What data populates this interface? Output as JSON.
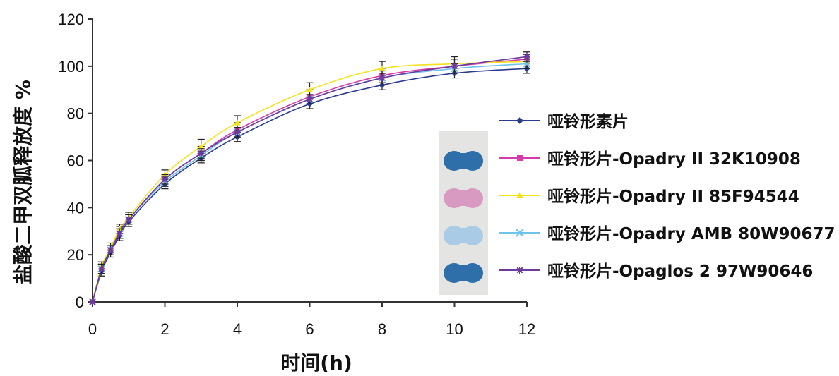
{
  "chart_data": {
    "type": "line",
    "title": "",
    "xlabel": "时间(h)",
    "ylabel": "盐酸二甲双胍释放度 %",
    "xlim": [
      0,
      12
    ],
    "ylim": [
      0,
      120
    ],
    "x_ticks": [
      0,
      2,
      4,
      6,
      8,
      10,
      12
    ],
    "y_ticks": [
      0,
      20,
      40,
      60,
      80,
      100,
      120
    ],
    "x_tick_labels": [
      "0",
      "2",
      "4",
      "6",
      "8",
      "10",
      "12"
    ],
    "y_tick_labels": [
      "0",
      "20",
      "40",
      "60",
      "80",
      "100",
      "120"
    ],
    "grid": false,
    "legend_position": "right",
    "x": [
      0,
      0.25,
      0.5,
      0.75,
      1,
      2,
      3,
      4,
      6,
      8,
      10,
      12
    ],
    "series": [
      {
        "name": "哑铃形素片",
        "color": "#2b3c8f",
        "marker": "diamond",
        "values": [
          0,
          13,
          21,
          28,
          34,
          50,
          61,
          70,
          84,
          92,
          97,
          99
        ],
        "errors": [
          0,
          2,
          2,
          2,
          2,
          2,
          2,
          2,
          2,
          2,
          2,
          2
        ]
      },
      {
        "name": "哑铃形片-Opadry II 32K10908",
        "color": "#d63aa6",
        "marker": "square",
        "values": [
          0,
          14,
          22,
          30,
          35,
          52,
          63,
          73,
          87,
          96,
          100,
          103
        ],
        "errors": [
          0,
          2,
          2,
          2,
          2,
          2,
          3,
          3,
          3,
          3,
          3,
          2
        ]
      },
      {
        "name": "哑铃形片-Opadry II 85F94544",
        "color": "#f2e31b",
        "marker": "triangle",
        "values": [
          0,
          15,
          23,
          31,
          36,
          54,
          66,
          76,
          90,
          99,
          101,
          102
        ],
        "errors": [
          0,
          2,
          2,
          2,
          2,
          2,
          3,
          3,
          3,
          3,
          3,
          3
        ]
      },
      {
        "name": "哑铃形片-Opadry AMB 80W90677",
        "color": "#6ec3ea",
        "marker": "cross",
        "values": [
          0,
          14,
          22,
          29,
          35,
          51,
          62,
          72,
          86,
          95,
          99,
          101
        ],
        "errors": [
          0,
          2,
          2,
          2,
          2,
          2,
          2,
          2,
          2,
          2,
          2,
          2
        ]
      },
      {
        "name": "哑铃形片-Opaglos 2 97W90646",
        "color": "#6a3a9c",
        "marker": "star",
        "values": [
          0,
          14,
          22,
          29,
          35,
          52,
          63,
          72,
          86,
          95,
          100,
          104
        ],
        "errors": [
          0,
          2,
          2,
          2,
          2,
          2,
          2,
          2,
          2,
          3,
          3,
          2
        ]
      }
    ]
  },
  "legend_tablet_colors": [
    "#2e6ea9",
    "#d89ac0",
    "#a9cbe6",
    "#2e6ea9"
  ]
}
